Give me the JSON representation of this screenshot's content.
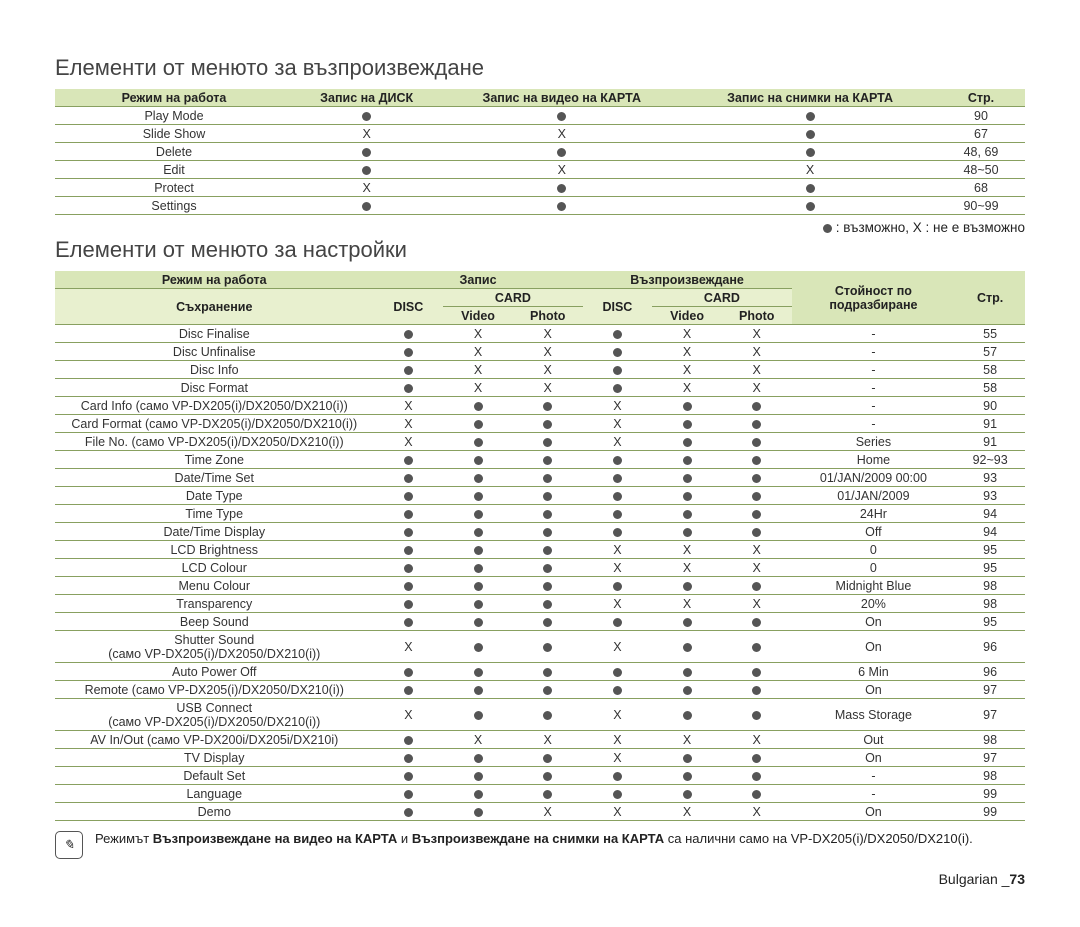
{
  "heading1": "Елементи от менюто за възпроизвеждане",
  "heading2": "Елементи от менюто за настройки",
  "legend": " : възможно, X : не е възможно",
  "table1": {
    "headers": [
      "Режим на работа",
      "Запис на ДИСК",
      "Запис на видео на КАРТА",
      "Запис на снимки на КАРТА",
      "Стр."
    ],
    "rows": [
      [
        "Play Mode",
        "●",
        "●",
        "●",
        "90"
      ],
      [
        "Slide Show",
        "X",
        "X",
        "●",
        "67"
      ],
      [
        "Delete",
        "●",
        "●",
        "●",
        "48, 69"
      ],
      [
        "Edit",
        "●",
        "X",
        "X",
        "48~50"
      ],
      [
        "Protect",
        "X",
        "●",
        "●",
        "68"
      ],
      [
        "Settings",
        "●",
        "●",
        "●",
        "90~99"
      ]
    ]
  },
  "table2": {
    "header_row1": [
      "Режим на работа",
      "Запис",
      "Възпроизвеждане",
      "Стойност по подразбиране",
      "Стр."
    ],
    "header_row2_storage": "Съхранение",
    "header_row2_disc": "DISC",
    "header_row2_card": "CARD",
    "header_row2_video": "Video",
    "header_row2_photo": "Photo",
    "rows": [
      [
        "Disc Finalise",
        "●",
        "X",
        "X",
        "●",
        "X",
        "X",
        "-",
        "55"
      ],
      [
        "Disc Unfinalise",
        "●",
        "X",
        "X",
        "●",
        "X",
        "X",
        "-",
        "57"
      ],
      [
        "Disc Info",
        "●",
        "X",
        "X",
        "●",
        "X",
        "X",
        "-",
        "58"
      ],
      [
        "Disc Format",
        "●",
        "X",
        "X",
        "●",
        "X",
        "X",
        "-",
        "58"
      ],
      [
        "Card Info (само VP-DX205(i)/DX2050/DX210(i))",
        "X",
        "●",
        "●",
        "X",
        "●",
        "●",
        "-",
        "90"
      ],
      [
        "Card Format (само VP-DX205(i)/DX2050/DX210(i))",
        "X",
        "●",
        "●",
        "X",
        "●",
        "●",
        "-",
        "91"
      ],
      [
        "File No. (само VP-DX205(i)/DX2050/DX210(i))",
        "X",
        "●",
        "●",
        "X",
        "●",
        "●",
        "Series",
        "91"
      ],
      [
        "Time Zone",
        "●",
        "●",
        "●",
        "●",
        "●",
        "●",
        "Home",
        "92~93"
      ],
      [
        "Date/Time Set",
        "●",
        "●",
        "●",
        "●",
        "●",
        "●",
        "01/JAN/2009 00:00",
        "93"
      ],
      [
        "Date Type",
        "●",
        "●",
        "●",
        "●",
        "●",
        "●",
        "01/JAN/2009",
        "93"
      ],
      [
        "Time Type",
        "●",
        "●",
        "●",
        "●",
        "●",
        "●",
        "24Hr",
        "94"
      ],
      [
        "Date/Time Display",
        "●",
        "●",
        "●",
        "●",
        "●",
        "●",
        "Off",
        "94"
      ],
      [
        "LCD Brightness",
        "●",
        "●",
        "●",
        "X",
        "X",
        "X",
        "0",
        "95"
      ],
      [
        "LCD Colour",
        "●",
        "●",
        "●",
        "X",
        "X",
        "X",
        "0",
        "95"
      ],
      [
        "Menu Colour",
        "●",
        "●",
        "●",
        "●",
        "●",
        "●",
        "Midnight Blue",
        "98"
      ],
      [
        "Transparency",
        "●",
        "●",
        "●",
        "X",
        "X",
        "X",
        "20%",
        "98"
      ],
      [
        "Beep Sound",
        "●",
        "●",
        "●",
        "●",
        "●",
        "●",
        "On",
        "95"
      ],
      [
        "Shutter Sound\n(само VP-DX205(i)/DX2050/DX210(i))",
        "X",
        "●",
        "●",
        "X",
        "●",
        "●",
        "On",
        "96"
      ],
      [
        "Auto Power Off",
        "●",
        "●",
        "●",
        "●",
        "●",
        "●",
        "6 Min",
        "96"
      ],
      [
        "Remote (само VP-DX205(i)/DX2050/DX210(i))",
        "●",
        "●",
        "●",
        "●",
        "●",
        "●",
        "On",
        "97"
      ],
      [
        "USB Connect\n(само VP-DX205(i)/DX2050/DX210(i))",
        "X",
        "●",
        "●",
        "X",
        "●",
        "●",
        "Mass Storage",
        "97"
      ],
      [
        "AV In/Out (само VP-DX200i/DX205i/DX210i)",
        "●",
        "X",
        "X",
        "X",
        "X",
        "X",
        "Out",
        "98"
      ],
      [
        "TV Display",
        "●",
        "●",
        "●",
        "X",
        "●",
        "●",
        "On",
        "97"
      ],
      [
        "Default Set",
        "●",
        "●",
        "●",
        "●",
        "●",
        "●",
        "-",
        "98"
      ],
      [
        "Language",
        "●",
        "●",
        "●",
        "●",
        "●",
        "●",
        "-",
        "99"
      ],
      [
        "Demo",
        "●",
        "●",
        "X",
        "X",
        "X",
        "X",
        "On",
        "99"
      ]
    ]
  },
  "note_html": "Режимът <b>Възпроизвеждане на видео на КАРТА</b> и <b>Възпроизвеждане на снимки на КАРТА</b> са налични само на VP-DX205(i)/DX2050/DX210(i).",
  "footer_lang": "Bulgarian _",
  "footer_page": "73",
  "colors": {
    "header_bg": "#d9e6b8",
    "subheader_bg": "#e8f0cf",
    "border": "#88a060"
  }
}
